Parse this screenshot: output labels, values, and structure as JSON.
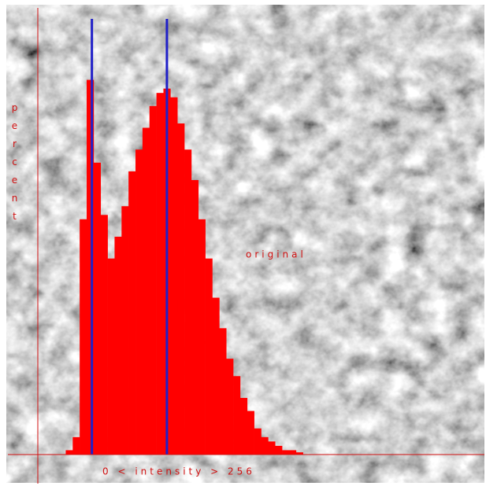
{
  "chart_data": {
    "type": "histogram",
    "ylabel": "percent",
    "xlabel": "0 < intensity > 256",
    "annotation": "original",
    "bins": [
      16,
      20,
      24,
      28,
      32,
      36,
      40,
      44,
      48,
      52,
      56,
      60,
      64,
      68,
      72,
      76,
      80,
      84,
      88,
      92,
      96,
      100,
      104,
      108,
      112,
      116,
      120,
      124,
      128,
      132,
      136,
      140,
      144,
      148,
      152
    ],
    "values": [
      1,
      4,
      54,
      86,
      67,
      55,
      45,
      50,
      57,
      65,
      70,
      75,
      80,
      83,
      84,
      82,
      76,
      70,
      63,
      54,
      45,
      36,
      29,
      22,
      18,
      13,
      10,
      6,
      4,
      3,
      2,
      1,
      1,
      0.5
    ],
    "color": "#ff0000",
    "markers": [
      31,
      74
    ],
    "marker_color": "#2020c8",
    "axis_color": "#d01010",
    "xlim": [
      0,
      256
    ],
    "ylim": [
      0,
      100
    ]
  }
}
